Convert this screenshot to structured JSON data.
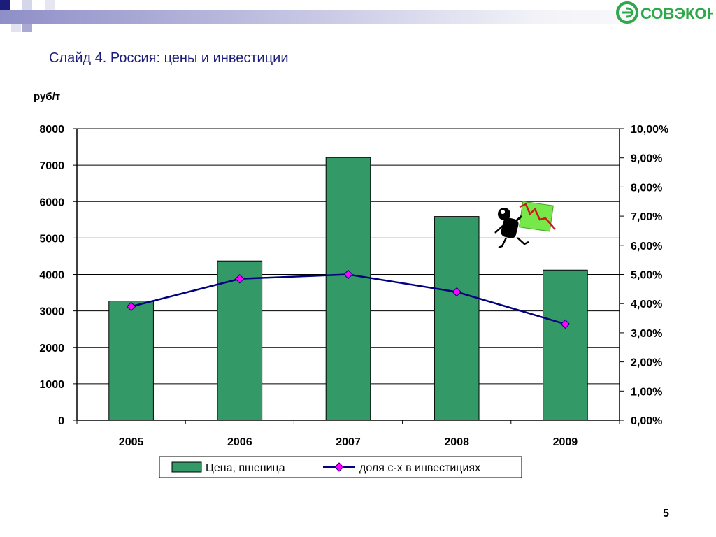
{
  "slide": {
    "title": "Слайд 4. Россия: цены и инвестиции",
    "page_number": "5",
    "logo_text": "СОВЭКОН"
  },
  "colors": {
    "bar": "#339966",
    "line": "#000080",
    "marker": "#ff00ff",
    "title": "#1c1c7a",
    "logo": "#2ea84a"
  },
  "chart_data": {
    "type": "bar",
    "categories": [
      "2005",
      "2006",
      "2007",
      "2008",
      "2009"
    ],
    "series": [
      {
        "name": "Цена, пшеница",
        "type": "bar",
        "axis": "left",
        "values": [
          3270,
          4370,
          7210,
          5590,
          4120
        ]
      },
      {
        "name": "доля с-х в инвестициях",
        "type": "line",
        "axis": "right",
        "values": [
          3.9,
          4.85,
          5.0,
          4.4,
          3.3
        ]
      }
    ],
    "ylabel": "руб/т",
    "ylim": [
      0,
      8000
    ],
    "y_ticks": [
      "0",
      "1000",
      "2000",
      "3000",
      "4000",
      "5000",
      "6000",
      "7000",
      "8000"
    ],
    "y2lim": [
      0,
      10
    ],
    "y2_ticks": [
      "0,00%",
      "1,00%",
      "2,00%",
      "3,00%",
      "4,00%",
      "5,00%",
      "6,00%",
      "7,00%",
      "8,00%",
      "9,00%",
      "10,00%"
    ],
    "grid": true,
    "legend_position": "bottom"
  }
}
